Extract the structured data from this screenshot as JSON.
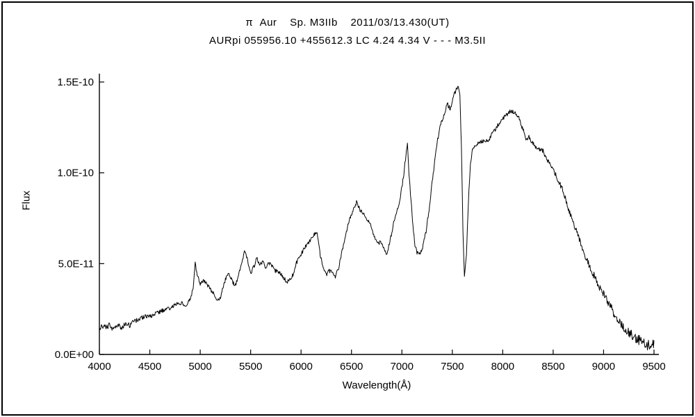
{
  "titles": {
    "line1": "π  Aur    Sp. M3IIb    2011/03/13.430(UT)",
    "line2": "AURpi 055956.10 +455612.3 LC 4.24 4.34 V - - - M3.5II"
  },
  "chart_data": {
    "type": "line",
    "title": "π Aur  Sp. M3IIb  2011/03/13.430(UT)",
    "subtitle": "AURpi 055956.10 +455612.3 LC 4.24 4.34 V - - - M3.5II",
    "xlabel": "Wavelength(Å)",
    "ylabel": "Flux",
    "grid": false,
    "legend": "none",
    "line_color": "#000000",
    "x_range": [
      4000,
      9500
    ],
    "y_range_e10": [
      0,
      1.5
    ],
    "x_ticks": [
      4000,
      4500,
      5000,
      5500,
      6000,
      6500,
      7000,
      7500,
      8000,
      8500,
      9000,
      9500
    ],
    "x_tick_labels": [
      "4000",
      "4500",
      "5000",
      "5500",
      "6000",
      "6500",
      "7000",
      "7500",
      "8000",
      "8500",
      "9000",
      "9500"
    ],
    "y_ticks_e10": [
      0,
      0.5,
      1.0,
      1.5
    ],
    "y_tick_labels": [
      "0.0E+00",
      "5.0E-11",
      "1.0E-10",
      "1.5E-10"
    ],
    "series": [
      {
        "name": "pi Aur flux spectrum",
        "points_e10": [
          [
            4000,
            0.13
          ],
          [
            4030,
            0.16
          ],
          [
            4060,
            0.15
          ],
          [
            4100,
            0.16
          ],
          [
            4140,
            0.14
          ],
          [
            4180,
            0.16
          ],
          [
            4220,
            0.15
          ],
          [
            4260,
            0.17
          ],
          [
            4300,
            0.16
          ],
          [
            4340,
            0.18
          ],
          [
            4380,
            0.19
          ],
          [
            4420,
            0.2
          ],
          [
            4460,
            0.21
          ],
          [
            4500,
            0.21
          ],
          [
            4540,
            0.22
          ],
          [
            4580,
            0.23
          ],
          [
            4620,
            0.24
          ],
          [
            4660,
            0.25
          ],
          [
            4700,
            0.25
          ],
          [
            4740,
            0.27
          ],
          [
            4780,
            0.28
          ],
          [
            4820,
            0.28
          ],
          [
            4860,
            0.27
          ],
          [
            4900,
            0.31
          ],
          [
            4930,
            0.36
          ],
          [
            4950,
            0.5
          ],
          [
            4970,
            0.44
          ],
          [
            5000,
            0.38
          ],
          [
            5030,
            0.41
          ],
          [
            5060,
            0.39
          ],
          [
            5100,
            0.36
          ],
          [
            5140,
            0.33
          ],
          [
            5170,
            0.3
          ],
          [
            5200,
            0.31
          ],
          [
            5230,
            0.38
          ],
          [
            5260,
            0.43
          ],
          [
            5290,
            0.44
          ],
          [
            5320,
            0.4
          ],
          [
            5350,
            0.38
          ],
          [
            5380,
            0.44
          ],
          [
            5410,
            0.5
          ],
          [
            5440,
            0.57
          ],
          [
            5470,
            0.52
          ],
          [
            5500,
            0.45
          ],
          [
            5530,
            0.48
          ],
          [
            5560,
            0.53
          ],
          [
            5590,
            0.49
          ],
          [
            5620,
            0.51
          ],
          [
            5650,
            0.48
          ],
          [
            5680,
            0.5
          ],
          [
            5710,
            0.49
          ],
          [
            5740,
            0.46
          ],
          [
            5770,
            0.46
          ],
          [
            5800,
            0.44
          ],
          [
            5830,
            0.42
          ],
          [
            5860,
            0.4
          ],
          [
            5890,
            0.41
          ],
          [
            5920,
            0.44
          ],
          [
            5950,
            0.5
          ],
          [
            5980,
            0.53
          ],
          [
            6010,
            0.56
          ],
          [
            6050,
            0.6
          ],
          [
            6090,
            0.63
          ],
          [
            6130,
            0.66
          ],
          [
            6160,
            0.67
          ],
          [
            6190,
            0.55
          ],
          [
            6220,
            0.47
          ],
          [
            6250,
            0.44
          ],
          [
            6280,
            0.46
          ],
          [
            6310,
            0.45
          ],
          [
            6340,
            0.43
          ],
          [
            6370,
            0.47
          ],
          [
            6400,
            0.55
          ],
          [
            6430,
            0.63
          ],
          [
            6460,
            0.7
          ],
          [
            6490,
            0.76
          ],
          [
            6520,
            0.8
          ],
          [
            6550,
            0.84
          ],
          [
            6580,
            0.8
          ],
          [
            6610,
            0.78
          ],
          [
            6640,
            0.76
          ],
          [
            6670,
            0.73
          ],
          [
            6700,
            0.7
          ],
          [
            6730,
            0.64
          ],
          [
            6760,
            0.61
          ],
          [
            6790,
            0.62
          ],
          [
            6820,
            0.58
          ],
          [
            6850,
            0.55
          ],
          [
            6880,
            0.62
          ],
          [
            6910,
            0.7
          ],
          [
            6940,
            0.78
          ],
          [
            6970,
            0.82
          ],
          [
            7000,
            0.92
          ],
          [
            7020,
            1.0
          ],
          [
            7040,
            1.1
          ],
          [
            7055,
            1.17
          ],
          [
            7070,
            1.0
          ],
          [
            7090,
            0.85
          ],
          [
            7110,
            0.7
          ],
          [
            7130,
            0.6
          ],
          [
            7150,
            0.56
          ],
          [
            7180,
            0.55
          ],
          [
            7210,
            0.6
          ],
          [
            7240,
            0.68
          ],
          [
            7270,
            0.8
          ],
          [
            7300,
            0.95
          ],
          [
            7330,
            1.08
          ],
          [
            7360,
            1.2
          ],
          [
            7390,
            1.28
          ],
          [
            7420,
            1.32
          ],
          [
            7450,
            1.38
          ],
          [
            7480,
            1.35
          ],
          [
            7510,
            1.42
          ],
          [
            7535,
            1.45
          ],
          [
            7560,
            1.48
          ],
          [
            7575,
            1.43
          ],
          [
            7590,
            1.15
          ],
          [
            7605,
            0.7
          ],
          [
            7620,
            0.42
          ],
          [
            7640,
            0.55
          ],
          [
            7660,
            0.85
          ],
          [
            7680,
            1.05
          ],
          [
            7700,
            1.12
          ],
          [
            7730,
            1.15
          ],
          [
            7760,
            1.16
          ],
          [
            7790,
            1.17
          ],
          [
            7820,
            1.18
          ],
          [
            7850,
            1.17
          ],
          [
            7880,
            1.2
          ],
          [
            7910,
            1.23
          ],
          [
            7940,
            1.25
          ],
          [
            7970,
            1.28
          ],
          [
            8000,
            1.3
          ],
          [
            8040,
            1.32
          ],
          [
            8080,
            1.34
          ],
          [
            8120,
            1.33
          ],
          [
            8160,
            1.3
          ],
          [
            8200,
            1.24
          ],
          [
            8230,
            1.18
          ],
          [
            8260,
            1.2
          ],
          [
            8300,
            1.16
          ],
          [
            8350,
            1.13
          ],
          [
            8400,
            1.12
          ],
          [
            8450,
            1.06
          ],
          [
            8500,
            1.02
          ],
          [
            8550,
            0.96
          ],
          [
            8600,
            0.9
          ],
          [
            8650,
            0.8
          ],
          [
            8700,
            0.72
          ],
          [
            8750,
            0.65
          ],
          [
            8800,
            0.57
          ],
          [
            8850,
            0.5
          ],
          [
            8900,
            0.44
          ],
          [
            8950,
            0.38
          ],
          [
            9000,
            0.33
          ],
          [
            9050,
            0.28
          ],
          [
            9100,
            0.23
          ],
          [
            9150,
            0.19
          ],
          [
            9200,
            0.15
          ],
          [
            9250,
            0.12
          ],
          [
            9300,
            0.1
          ],
          [
            9350,
            0.08
          ],
          [
            9400,
            0.06
          ],
          [
            9450,
            0.05
          ],
          [
            9500,
            0.06
          ]
        ]
      }
    ],
    "noise": {
      "seed": 20110313,
      "sample_step": 5,
      "amplitude_profile_e10": [
        [
          4000,
          0.016
        ],
        [
          4300,
          0.013
        ],
        [
          4700,
          0.011
        ],
        [
          5500,
          0.011
        ],
        [
          6500,
          0.011
        ],
        [
          7500,
          0.012
        ],
        [
          8300,
          0.012
        ],
        [
          8700,
          0.016
        ],
        [
          9000,
          0.022
        ],
        [
          9250,
          0.027
        ],
        [
          9500,
          0.03
        ]
      ]
    }
  }
}
